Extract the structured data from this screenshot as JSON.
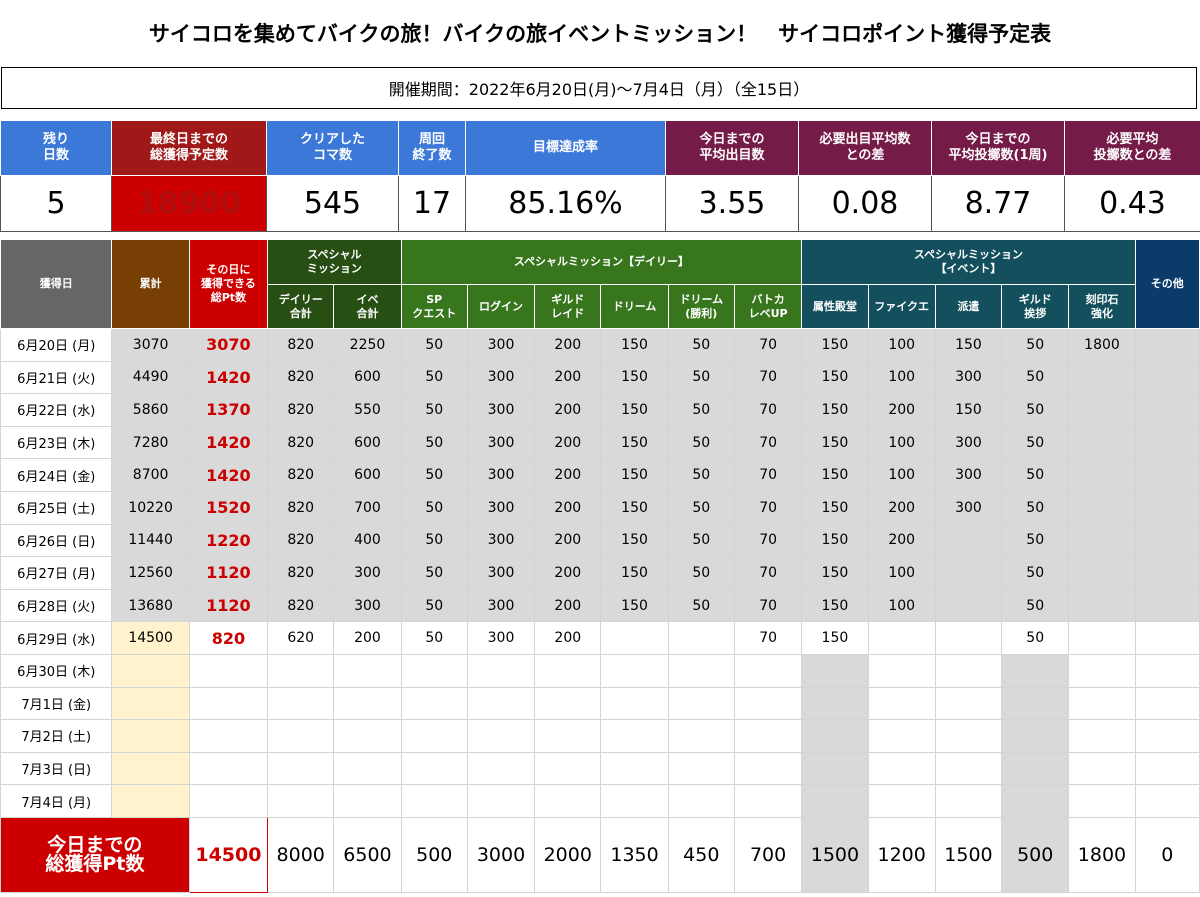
{
  "title": "サイコロを集めてバイクの旅！バイクの旅イベントミッション！　サイコロポイント獲得予定表",
  "period": "開催期間：2022年6月20日(月)〜7月4日（月）（全15日）",
  "summary": {
    "headers": [
      "残り\n日数",
      "最終日までの\n総獲得予定数",
      "クリアした\nコマ数",
      "周回\n終了数",
      "目標達成率",
      "今日までの\n平均出目数",
      "必要出目平均数\nとの差",
      "今日までの\n平均投擲数(1周)",
      "必要平均\n投擲数との差"
    ],
    "values": [
      "5",
      "18900",
      "545",
      "17",
      "85.16%",
      "3.55",
      "0.08",
      "8.77",
      "0.43"
    ]
  },
  "grid": {
    "headers": {
      "date": "獲得日",
      "cumulative": "累計",
      "daily_points": "その日に\n獲得できる\n総Pt数",
      "special": "スペシャル\nミッション",
      "daily_group": "スペシャルミッション【デイリー】",
      "event_group": "スペシャルミッション\n【イベント】",
      "other": "その他",
      "sub": [
        "デイリー\n合計",
        "イベ\n合計",
        "SP\nクエスト",
        "ログイン",
        "ギルド\nレイド",
        "ドリーム",
        "ドリーム\n(勝利)",
        "バトカ\nレベUP",
        "属性殿堂",
        "ファイクエ",
        "派遣",
        "ギルド\n挨拶",
        "刻印石\n強化"
      ]
    },
    "rows": [
      [
        "6月20日 (月)",
        "3070",
        "3070",
        "820",
        "2250",
        "50",
        "300",
        "200",
        "150",
        "50",
        "70",
        "150",
        "100",
        "150",
        "50",
        "1800",
        ""
      ],
      [
        "6月21日 (火)",
        "4490",
        "1420",
        "820",
        "600",
        "50",
        "300",
        "200",
        "150",
        "50",
        "70",
        "150",
        "100",
        "300",
        "50",
        "",
        ""
      ],
      [
        "6月22日 (水)",
        "5860",
        "1370",
        "820",
        "550",
        "50",
        "300",
        "200",
        "150",
        "50",
        "70",
        "150",
        "200",
        "150",
        "50",
        "",
        ""
      ],
      [
        "6月23日 (木)",
        "7280",
        "1420",
        "820",
        "600",
        "50",
        "300",
        "200",
        "150",
        "50",
        "70",
        "150",
        "100",
        "300",
        "50",
        "",
        ""
      ],
      [
        "6月24日 (金)",
        "8700",
        "1420",
        "820",
        "600",
        "50",
        "300",
        "200",
        "150",
        "50",
        "70",
        "150",
        "100",
        "300",
        "50",
        "",
        ""
      ],
      [
        "6月25日 (土)",
        "10220",
        "1520",
        "820",
        "700",
        "50",
        "300",
        "200",
        "150",
        "50",
        "70",
        "150",
        "200",
        "300",
        "50",
        "",
        ""
      ],
      [
        "6月26日 (日)",
        "11440",
        "1220",
        "820",
        "400",
        "50",
        "300",
        "200",
        "150",
        "50",
        "70",
        "150",
        "200",
        "",
        "50",
        "",
        ""
      ],
      [
        "6月27日 (月)",
        "12560",
        "1120",
        "820",
        "300",
        "50",
        "300",
        "200",
        "150",
        "50",
        "70",
        "150",
        "100",
        "",
        "50",
        "",
        ""
      ],
      [
        "6月28日 (火)",
        "13680",
        "1120",
        "820",
        "300",
        "50",
        "300",
        "200",
        "150",
        "50",
        "70",
        "150",
        "100",
        "",
        "50",
        "",
        ""
      ],
      [
        "6月29日 (水)",
        "14500",
        "820",
        "620",
        "200",
        "50",
        "300",
        "200",
        "",
        "",
        "70",
        "150",
        "",
        "",
        "50",
        "",
        ""
      ],
      [
        "6月30日 (木)",
        "",
        "",
        "",
        "",
        "",
        "",
        "",
        "",
        "",
        "",
        "",
        "",
        "",
        "",
        "",
        ""
      ],
      [
        "7月1日 (金)",
        "",
        "",
        "",
        "",
        "",
        "",
        "",
        "",
        "",
        "",
        "",
        "",
        "",
        "",
        "",
        ""
      ],
      [
        "7月2日 (土)",
        "",
        "",
        "",
        "",
        "",
        "",
        "",
        "",
        "",
        "",
        "",
        "",
        "",
        "",
        "",
        ""
      ],
      [
        "7月3日 (日)",
        "",
        "",
        "",
        "",
        "",
        "",
        "",
        "",
        "",
        "",
        "",
        "",
        "",
        "",
        "",
        ""
      ],
      [
        "7月4日 (月)",
        "",
        "",
        "",
        "",
        "",
        "",
        "",
        "",
        "",
        "",
        "",
        "",
        "",
        "",
        "",
        ""
      ]
    ],
    "totals": {
      "label": "今日までの\n総獲得Pt数",
      "points": "14500",
      "values": [
        "8000",
        "6500",
        "500",
        "3000",
        "2000",
        "1350",
        "450",
        "700",
        "1500",
        "1200",
        "1500",
        "500",
        "1800",
        "0"
      ]
    }
  }
}
